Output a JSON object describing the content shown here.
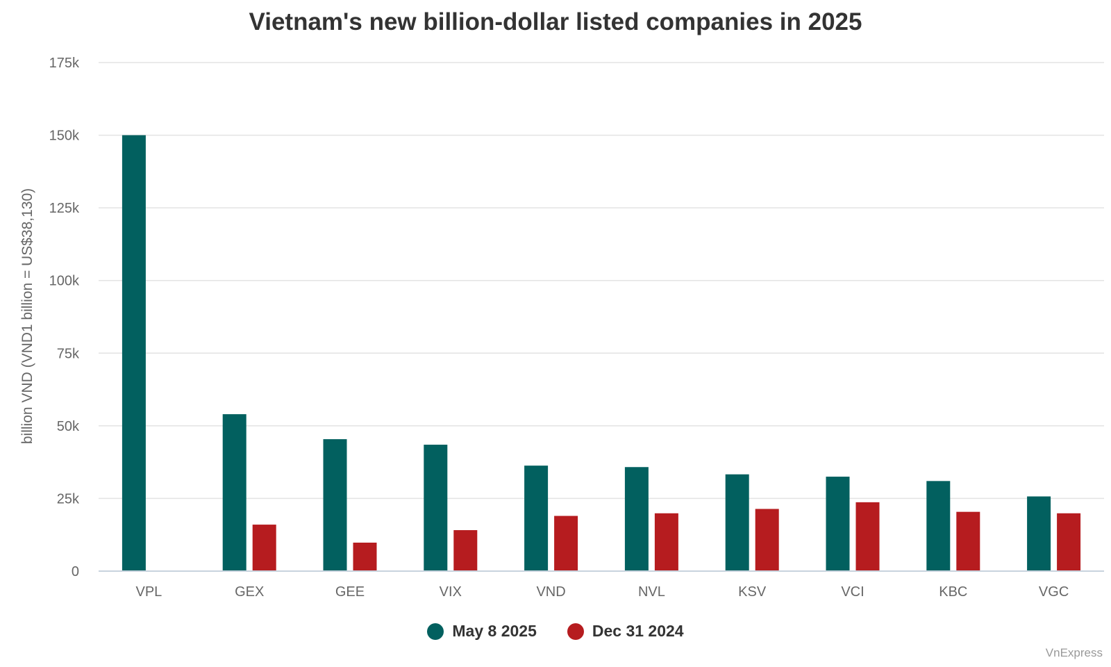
{
  "chart_data": {
    "type": "bar",
    "title": "Vietnam's new billion-dollar listed companies in 2025",
    "xlabel": "",
    "ylabel": "billion VND (VND1 billion = US$38,130)",
    "categories": [
      "VPL",
      "GEX",
      "GEE",
      "VIX",
      "VND",
      "NVL",
      "KSV",
      "VCI",
      "KBC",
      "VGC"
    ],
    "series": [
      {
        "name": "May 8 2025",
        "color": "#02605f",
        "values": [
          150000,
          54000,
          45400,
          43500,
          36300,
          35800,
          33300,
          32500,
          31000,
          25700
        ]
      },
      {
        "name": "Dec 31 2024",
        "color": "#b61c1f",
        "values": [
          null,
          16000,
          9800,
          14100,
          19000,
          19900,
          21400,
          23700,
          20400,
          19900
        ]
      }
    ],
    "ylim": [
      0,
      175000
    ],
    "yticks": [
      0,
      25000,
      50000,
      75000,
      100000,
      125000,
      150000,
      175000
    ],
    "ytick_labels": [
      "0",
      "25k",
      "50k",
      "75k",
      "100k",
      "125k",
      "150k",
      "175k"
    ],
    "grid": true,
    "legend_position": "bottom-center"
  },
  "credit": "VnExpress"
}
